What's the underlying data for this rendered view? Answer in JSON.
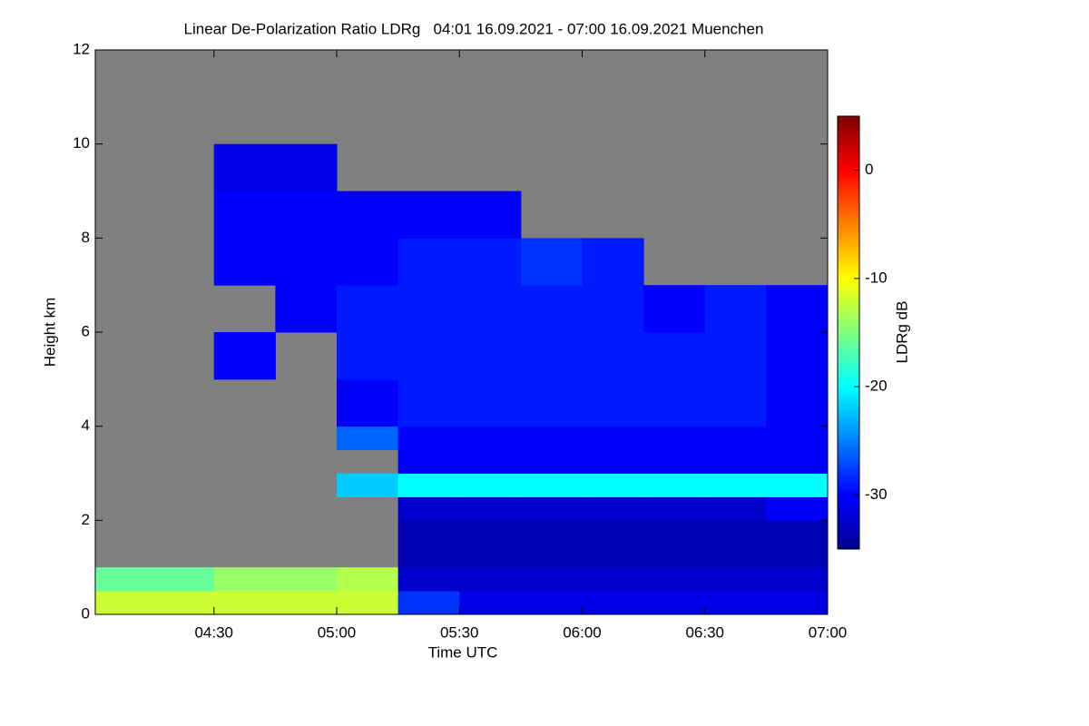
{
  "chart_data": {
    "type": "heatmap",
    "title": "Linear De-Polarization Ratio LDRg   04:01 16.09.2021 - 07:00 16.09.2021 Muenchen",
    "x_label": "Time UTC",
    "y_label": "Height km",
    "colorbar_label": "LDRg dB",
    "xlim": [
      241,
      420
    ],
    "xticks": [
      {
        "value": 270,
        "label": "04:30"
      },
      {
        "value": 300,
        "label": "05:00"
      },
      {
        "value": 330,
        "label": "05:30"
      },
      {
        "value": 360,
        "label": "06:00"
      },
      {
        "value": 390,
        "label": "06:30"
      },
      {
        "value": 420,
        "label": "07:00"
      }
    ],
    "ylim": [
      0,
      12
    ],
    "yticks": [
      0,
      2,
      4,
      6,
      8,
      10,
      12
    ],
    "zlim": [
      -35,
      5
    ],
    "colorbar_ticks": [
      0,
      -10,
      -20,
      -30
    ],
    "colormap": "jet",
    "missing_color": "#808080",
    "xbins": [
      240,
      255,
      270,
      285,
      300,
      315,
      330,
      345,
      360,
      375,
      390,
      405,
      420
    ],
    "ybins": [
      0,
      0.5,
      1,
      1.5,
      2,
      2.5,
      3,
      3.5,
      4,
      5,
      6,
      7,
      8,
      9,
      10,
      11,
      12
    ],
    "z": [
      [
        -12,
        -12,
        -12,
        -12,
        -12,
        -28,
        -31,
        -31,
        -31,
        -31,
        -31,
        -31
      ],
      [
        -16,
        -16,
        -14,
        -14,
        -13,
        -32,
        -32,
        -32,
        -32,
        -32,
        -32,
        -32
      ],
      [
        null,
        null,
        null,
        null,
        null,
        -33,
        -33,
        -33,
        -33,
        -33,
        -33,
        -33
      ],
      [
        null,
        null,
        null,
        null,
        null,
        -33,
        -33,
        -33,
        -33,
        -33,
        -33,
        -33
      ],
      [
        null,
        null,
        null,
        null,
        null,
        -32,
        -32,
        -32,
        -32,
        -32,
        -32,
        -30
      ],
      [
        null,
        null,
        null,
        null,
        -22,
        -20,
        -20,
        -20,
        -20,
        -20,
        -20,
        -20
      ],
      [
        null,
        null,
        null,
        null,
        null,
        -30,
        -30,
        -30,
        -30,
        -30,
        -30,
        -30
      ],
      [
        null,
        null,
        null,
        null,
        -26,
        -30,
        -30,
        -30,
        -30,
        -30,
        -30,
        -30
      ],
      [
        null,
        null,
        null,
        null,
        -30,
        -29,
        -29,
        -29,
        -29,
        -29,
        -29,
        -30
      ],
      [
        null,
        null,
        -30,
        null,
        -29,
        -29,
        -29,
        -29,
        -29,
        -29,
        -29,
        -30
      ],
      [
        null,
        null,
        null,
        -30,
        -29,
        -29,
        -29,
        -29,
        -29,
        -30,
        -29,
        -30
      ],
      [
        null,
        null,
        -30,
        -30,
        -30,
        -29,
        -29,
        -28,
        -29,
        null,
        null,
        null
      ],
      [
        null,
        null,
        -30,
        -30,
        -30,
        -30,
        -30,
        null,
        null,
        null,
        null,
        null
      ],
      [
        null,
        null,
        -31,
        -31,
        null,
        null,
        null,
        null,
        null,
        null,
        null,
        null
      ],
      [
        null,
        null,
        null,
        null,
        null,
        null,
        null,
        null,
        null,
        null,
        null,
        null
      ],
      [
        null,
        null,
        null,
        null,
        null,
        null,
        null,
        null,
        null,
        null,
        null,
        null
      ]
    ]
  }
}
